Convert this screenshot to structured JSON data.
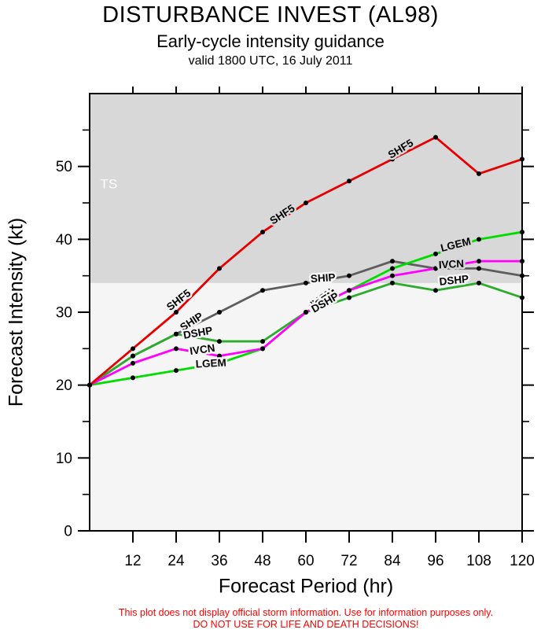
{
  "header": {
    "title": "DISTURBANCE INVEST (AL98)",
    "subtitle": "Early-cycle intensity guidance",
    "valid_line": "valid 1800 UTC, 16 July 2011"
  },
  "axes": {
    "x_label": "Forecast Period (hr)",
    "y_label": "Forecast Intensity (kt)"
  },
  "disclaimer": {
    "line1": "This plot does not display official storm information. Use for information purposes only.",
    "line2": "DO NOT USE FOR LIFE AND DEATH DECISIONS!"
  },
  "chart_data": {
    "type": "line",
    "x": [
      0,
      12,
      24,
      36,
      48,
      60,
      72,
      84,
      96,
      108,
      120
    ],
    "xlim": [
      0,
      120
    ],
    "ylim": [
      0,
      60
    ],
    "xticks": [
      12,
      24,
      36,
      48,
      60,
      72,
      84,
      96,
      108,
      120
    ],
    "yticks_major": [
      0,
      10,
      20,
      30,
      40,
      50
    ],
    "yticks_minor": [
      5,
      15,
      25,
      35,
      45,
      55
    ],
    "grid": false,
    "shading": {
      "threshold": 34,
      "above_color": "#d8d8d8",
      "below_color": "#f5f5f5",
      "region_label": "TS",
      "region_label_color": "#ffffff"
    },
    "series": [
      {
        "name": "SHIP",
        "color": "#5e5e5e",
        "values": [
          20,
          24,
          27,
          30,
          33,
          34,
          35,
          37,
          36,
          36,
          35
        ]
      },
      {
        "name": "DSHP",
        "color": "#2cab2c",
        "values": [
          20,
          24,
          27,
          26,
          26,
          30,
          32,
          34,
          33,
          34,
          32
        ]
      },
      {
        "name": "LGEM",
        "color": "#00dc00",
        "values": [
          20,
          21,
          22,
          23,
          25,
          30,
          33,
          36,
          38,
          40,
          41
        ]
      },
      {
        "name": "IVCN",
        "color": "#ff00ff",
        "values": [
          20,
          23,
          25,
          24,
          25,
          30,
          33,
          35,
          36,
          37,
          37
        ]
      },
      {
        "name": "SHF5",
        "color": "#e60000",
        "values": [
          20,
          25,
          30,
          36,
          41,
          45,
          48,
          51,
          54,
          49,
          51
        ]
      }
    ],
    "annotations": [
      {
        "text": "SHF5",
        "hr": 25.3,
        "kt": 31.3,
        "rot": -38
      },
      {
        "text": "SHIP",
        "hr": 28.8,
        "kt": 28.3,
        "rot": -33
      },
      {
        "text": "DSHP",
        "hr": 30.2,
        "kt": 26.7,
        "rot": -10
      },
      {
        "text": "IVCN",
        "hr": 31.4,
        "kt": 24.4,
        "rot": -8
      },
      {
        "text": "LGEM",
        "hr": 33.7,
        "kt": 22.5,
        "rot": -3
      },
      {
        "text": "SHF5",
        "hr": 54.0,
        "kt": 43.0,
        "rot": -33
      },
      {
        "text": "SHIP",
        "hr": 64.8,
        "kt": 34.2,
        "rot": -4
      },
      {
        "text": "IVCN",
        "hr": 65.0,
        "kt": 31.5,
        "rot": -36
      },
      {
        "text": "LGEM",
        "hr": 65.3,
        "kt": 31.2,
        "rot": -34
      },
      {
        "text": "DSHP",
        "hr": 65.8,
        "kt": 30.9,
        "rot": -30
      },
      {
        "text": "SHF5",
        "hr": 86.8,
        "kt": 52.0,
        "rot": -31
      },
      {
        "text": "LGEM",
        "hr": 101.8,
        "kt": 38.8,
        "rot": -14
      },
      {
        "text": "SHIP",
        "hr": 100.0,
        "kt": 36.3,
        "rot": -3
      },
      {
        "text": "IVCN",
        "hr": 100.4,
        "kt": 36.1,
        "rot": -3
      },
      {
        "text": "DSHP",
        "hr": 101.2,
        "kt": 33.9,
        "rot": -6
      },
      {
        "text": "TS",
        "hr": 5.3,
        "kt": 47.0,
        "rot": 0,
        "color": "#ffffff",
        "size": 17,
        "weight": "normal"
      }
    ]
  }
}
